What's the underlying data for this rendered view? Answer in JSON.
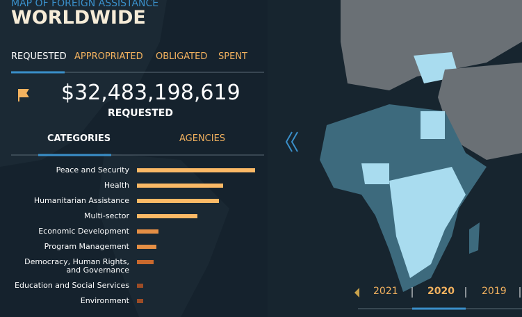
{
  "header": {
    "subtitle": "MAP OF FOREIGN ASSISTANCE",
    "title": "WORLDWIDE"
  },
  "tabs": [
    "REQUESTED",
    "APPROPRIATED",
    "OBLIGATED",
    "SPENT"
  ],
  "total": {
    "amount": "$32,483,198,619",
    "label": "REQUESTED"
  },
  "subtabs": [
    "CATEGORIES",
    "AGENCIES"
  ],
  "chart_data": {
    "type": "bar",
    "orientation": "horizontal",
    "categories": [
      "Peace and Security",
      "Health",
      "Humanitarian Assistance",
      "Multi-sector",
      "Economic Development",
      "Program Management",
      "Democracy, Human Rights, and Governance",
      "Education and Social Services",
      "Environment"
    ],
    "values": [
      9.2,
      6.7,
      6.4,
      4.7,
      1.7,
      1.5,
      1.3,
      0.5,
      0.5
    ],
    "colors": [
      "#fbb966",
      "#fbb966",
      "#fbb966",
      "#fbb966",
      "#e58f45",
      "#e58f45",
      "#c9692d",
      "#9c4c26",
      "#9c4c26"
    ],
    "xlim": [
      0,
      10
    ]
  },
  "years": [
    "2021",
    "2020",
    "2019"
  ]
}
